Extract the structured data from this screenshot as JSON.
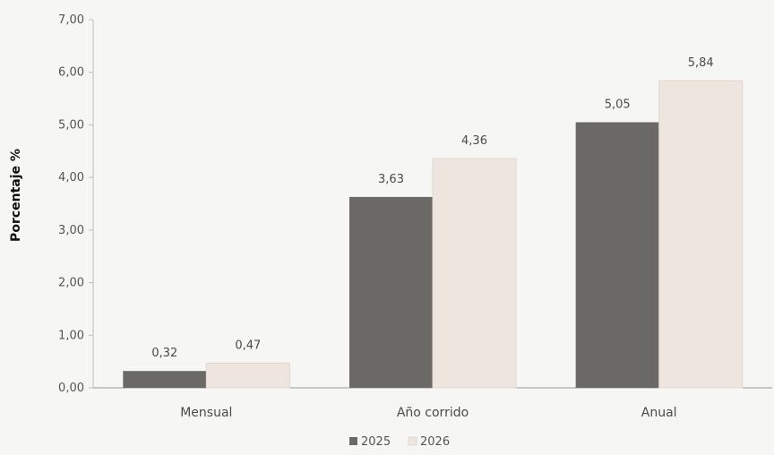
{
  "chart_data": {
    "type": "bar",
    "categories": [
      "Mensual",
      "Año corrido",
      "Anual"
    ],
    "series": [
      {
        "name": "2025",
        "values": [
          0.32,
          3.63,
          5.05
        ],
        "value_labels": [
          "0,32",
          "3,63",
          "5,05"
        ],
        "color": "#6b6966"
      },
      {
        "name": "2026",
        "values": [
          0.47,
          4.36,
          5.84
        ],
        "value_labels": [
          "0,47",
          "4,36",
          "5,84"
        ],
        "color": "#efe5df"
      }
    ],
    "ylabel": "Porcentaje %",
    "ylim": [
      0,
      7
    ],
    "y_ticks": [
      0,
      1,
      2,
      3,
      4,
      5,
      6,
      7
    ],
    "y_tick_labels": [
      "0,00",
      "1,00",
      "2,00",
      "3,00",
      "4,00",
      "5,00",
      "6,00",
      "7,00"
    ],
    "grid": false,
    "legend_position": "bottom"
  }
}
